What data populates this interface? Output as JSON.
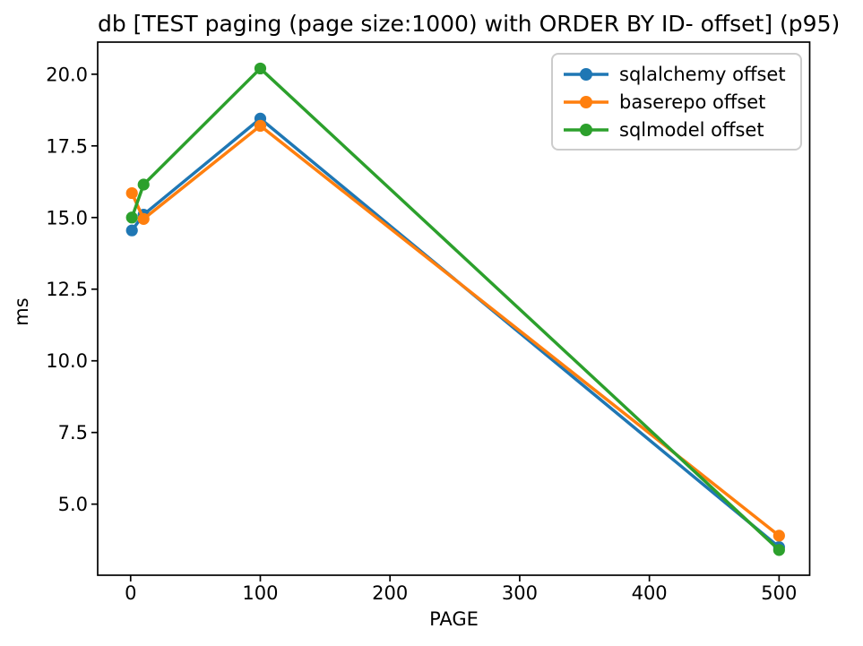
{
  "chart_data": {
    "type": "line",
    "title": "db [TEST paging (page size:1000) with ORDER BY ID- offset] (p95)",
    "xlabel": "PAGE",
    "ylabel": "ms",
    "x": [
      1,
      10,
      100,
      500
    ],
    "series": [
      {
        "name": "sqlalchemy offset",
        "color": "#1f77b4",
        "values": [
          14.55,
          15.1,
          18.45,
          3.5
        ]
      },
      {
        "name": "baserepo offset",
        "color": "#ff7f0e",
        "values": [
          15.85,
          14.95,
          18.2,
          3.9
        ]
      },
      {
        "name": "sqlmodel offset",
        "color": "#2ca02c",
        "values": [
          15.0,
          16.15,
          20.2,
          3.4
        ]
      }
    ],
    "xticks": [
      {
        "v": 0,
        "label": "0"
      },
      {
        "v": 100,
        "label": "100"
      },
      {
        "v": 200,
        "label": "200"
      },
      {
        "v": 300,
        "label": "300"
      },
      {
        "v": 400,
        "label": "400"
      },
      {
        "v": 500,
        "label": "500"
      }
    ],
    "yticks": [
      {
        "v": 5.0,
        "label": "5.0"
      },
      {
        "v": 7.5,
        "label": "7.5"
      },
      {
        "v": 10.0,
        "label": "10.0"
      },
      {
        "v": 12.5,
        "label": "12.5"
      },
      {
        "v": 15.0,
        "label": "15.0"
      },
      {
        "v": 17.5,
        "label": "17.5"
      },
      {
        "v": 20.0,
        "label": "20.0"
      }
    ],
    "xlim": [
      -25.4,
      523.6
    ],
    "ylim": [
      2.52,
      21.12
    ],
    "grid": false,
    "legend_position": "upper right",
    "axis_color": "#000000",
    "tick_label_color": "#000000",
    "legend_border_color": "#cccccc",
    "background": "#ffffff"
  }
}
